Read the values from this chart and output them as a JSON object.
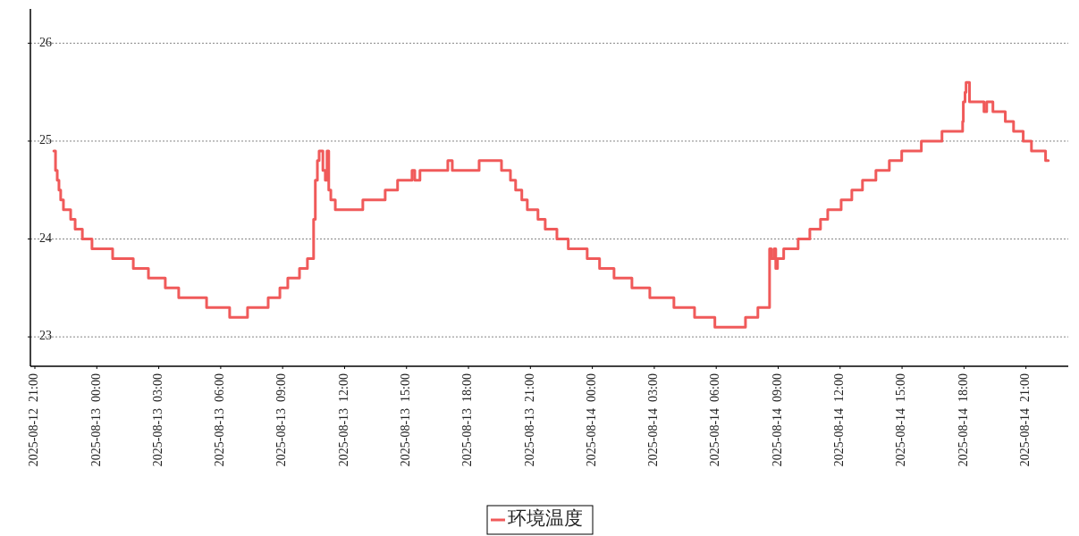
{
  "chart_data": {
    "type": "step",
    "xlim": [
      "2025-08-12T20:47",
      "2025-08-14T23:03"
    ],
    "ylim": [
      22.7,
      26.35
    ],
    "yticks": [
      23,
      24,
      25,
      26
    ],
    "xticks": [
      {
        "value": "2025-08-12T21:00",
        "label": "2025-08-12  21:00"
      },
      {
        "value": "2025-08-13T00:00",
        "label": "2025-08-13  00:00"
      },
      {
        "value": "2025-08-13T03:00",
        "label": "2025-08-13  03:00"
      },
      {
        "value": "2025-08-13T06:00",
        "label": "2025-08-13  06:00"
      },
      {
        "value": "2025-08-13T09:00",
        "label": "2025-08-13  09:00"
      },
      {
        "value": "2025-08-13T12:00",
        "label": "2025-08-13  12:00"
      },
      {
        "value": "2025-08-13T15:00",
        "label": "2025-08-13  15:00"
      },
      {
        "value": "2025-08-13T18:00",
        "label": "2025-08-13  18:00"
      },
      {
        "value": "2025-08-13T21:00",
        "label": "2025-08-13  21:00"
      },
      {
        "value": "2025-08-14T00:00",
        "label": "2025-08-14  00:00"
      },
      {
        "value": "2025-08-14T03:00",
        "label": "2025-08-14  03:00"
      },
      {
        "value": "2025-08-14T06:00",
        "label": "2025-08-14  06:00"
      },
      {
        "value": "2025-08-14T09:00",
        "label": "2025-08-14  09:00"
      },
      {
        "value": "2025-08-14T12:00",
        "label": "2025-08-14  12:00"
      },
      {
        "value": "2025-08-14T15:00",
        "label": "2025-08-14  15:00"
      },
      {
        "value": "2025-08-14T18:00",
        "label": "2025-08-14  18:00"
      },
      {
        "value": "2025-08-14T21:00",
        "label": "2025-08-14  21:00"
      }
    ],
    "grid": "y",
    "legend": "bottom",
    "marker": "none",
    "line_style": "solid",
    "x": [
      "2025-08-12T21:55",
      "2025-08-12T22:00",
      "2025-08-12T22:05",
      "2025-08-12T22:10",
      "2025-08-12T22:15",
      "2025-08-12T22:23",
      "2025-08-12T22:44",
      "2025-08-12T22:57",
      "2025-08-12T23:18",
      "2025-08-12T23:46",
      "2025-08-13T00:46",
      "2025-08-13T01:46",
      "2025-08-13T02:30",
      "2025-08-13T03:19",
      "2025-08-13T03:58",
      "2025-08-13T05:19",
      "2025-08-13T06:26",
      "2025-08-13T07:18",
      "2025-08-13T08:18",
      "2025-08-13T08:52",
      "2025-08-13T09:15",
      "2025-08-13T09:49",
      "2025-08-13T10:12",
      "2025-08-13T10:30",
      "2025-08-13T10:35",
      "2025-08-13T10:41",
      "2025-08-13T10:46",
      "2025-08-13T10:57",
      "2025-08-13T11:04",
      "2025-08-13T11:09",
      "2025-08-13T11:14",
      "2025-08-13T11:20",
      "2025-08-13T11:33",
      "2025-08-13T12:53",
      "2025-08-13T13:58",
      "2025-08-13T14:34",
      "2025-08-13T15:16",
      "2025-08-13T15:24",
      "2025-08-13T15:39",
      "2025-08-13T17:00",
      "2025-08-13T17:13",
      "2025-08-13T18:31",
      "2025-08-13T19:36",
      "2025-08-13T20:02",
      "2025-08-13T20:17",
      "2025-08-13T20:35",
      "2025-08-13T20:51",
      "2025-08-13T21:22",
      "2025-08-13T21:43",
      "2025-08-13T22:17",
      "2025-08-13T22:50",
      "2025-08-13T23:45",
      "2025-08-14T00:21",
      "2025-08-14T01:03",
      "2025-08-14T01:55",
      "2025-08-14T02:47",
      "2025-08-14T03:57",
      "2025-08-14T04:57",
      "2025-08-14T05:56",
      "2025-08-14T07:25",
      "2025-08-14T08:01",
      "2025-08-14T08:35",
      "2025-08-14T08:40",
      "2025-08-14T08:48",
      "2025-08-14T08:53",
      "2025-08-14T08:58",
      "2025-08-14T09:16",
      "2025-08-14T09:58",
      "2025-08-14T10:32",
      "2025-08-14T11:03",
      "2025-08-14T11:24",
      "2025-08-14T12:03",
      "2025-08-14T12:34",
      "2025-08-14T13:05",
      "2025-08-14T13:44",
      "2025-08-14T14:23",
      "2025-08-14T14:59",
      "2025-08-14T15:56",
      "2025-08-14T16:56",
      "2025-08-14T17:56",
      "2025-08-14T17:58",
      "2025-08-14T18:03",
      "2025-08-14T18:06",
      "2025-08-14T18:16",
      "2025-08-14T18:58",
      "2025-08-14T19:06",
      "2025-08-14T19:24",
      "2025-08-14T20:00",
      "2025-08-14T20:24",
      "2025-08-14T20:52",
      "2025-08-14T21:16",
      "2025-08-14T21:57",
      "2025-08-14T22:05"
    ],
    "series": [
      {
        "name": "环境温度",
        "color": "#f05a5a",
        "values": [
          24.9,
          24.7,
          24.6,
          24.5,
          24.4,
          24.3,
          24.2,
          24.1,
          24.0,
          23.9,
          23.8,
          23.7,
          23.6,
          23.5,
          23.4,
          23.3,
          23.2,
          23.3,
          23.4,
          23.5,
          23.6,
          23.7,
          23.8,
          24.2,
          24.6,
          24.8,
          24.9,
          24.7,
          24.6,
          24.9,
          24.5,
          24.4,
          24.3,
          24.4,
          24.5,
          24.6,
          24.7,
          24.6,
          24.7,
          24.8,
          24.7,
          24.8,
          24.7,
          24.6,
          24.5,
          24.4,
          24.3,
          24.2,
          24.1,
          24.0,
          23.9,
          23.8,
          23.7,
          23.6,
          23.5,
          23.4,
          23.3,
          23.2,
          23.1,
          23.2,
          23.3,
          23.9,
          23.8,
          23.9,
          23.7,
          23.8,
          23.9,
          24.0,
          24.1,
          24.2,
          24.3,
          24.4,
          24.5,
          24.6,
          24.7,
          24.8,
          24.9,
          25.0,
          25.1,
          25.2,
          25.4,
          25.5,
          25.6,
          25.4,
          25.3,
          25.4,
          25.3,
          25.2,
          25.1,
          25.0,
          24.9,
          24.8,
          24.8
        ]
      }
    ]
  }
}
